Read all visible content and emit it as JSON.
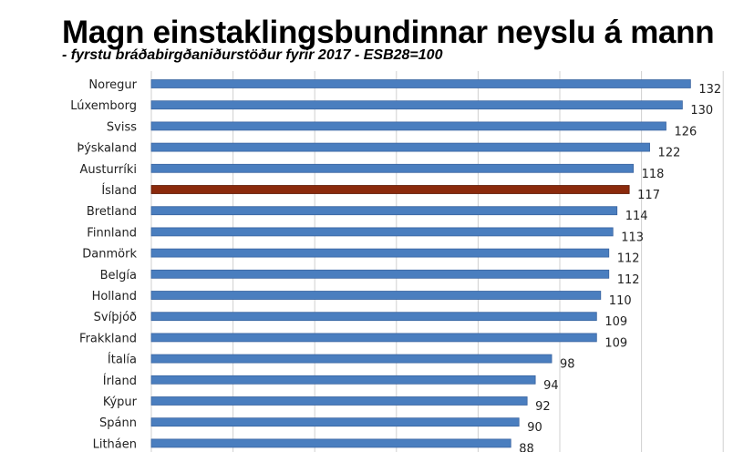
{
  "chart_data": {
    "type": "bar",
    "orientation": "horizontal",
    "title": "Magn einstaklingsbundinnar neyslu á mann",
    "subtitle": "- fyrstu bráðabirgðaniðurstöður fyrir 2017 - ESB28=100",
    "categories": [
      "Noregur",
      "Lúxemborg",
      "Sviss",
      "Þýskaland",
      "Austurríki",
      "Ísland",
      "Bretland",
      "Finnland",
      "Danmörk",
      "Belgía",
      "Holland",
      "Svíþjóð",
      "Frakkland",
      "Ítalía",
      "Írland",
      "Kýpur",
      "Spánn",
      "Litháen"
    ],
    "values": [
      132,
      130,
      126,
      122,
      118,
      117,
      114,
      113,
      112,
      112,
      110,
      109,
      109,
      98,
      94,
      92,
      90,
      88
    ],
    "highlight": "Ísland",
    "xlim": [
      0,
      140
    ],
    "grid_step": 20,
    "grid": true,
    "colors": {
      "bar": "#4a7ebf",
      "bar_edge": "#3a64a0",
      "highlight": "#8b2a0c",
      "grid": "#d0d0d0"
    }
  }
}
